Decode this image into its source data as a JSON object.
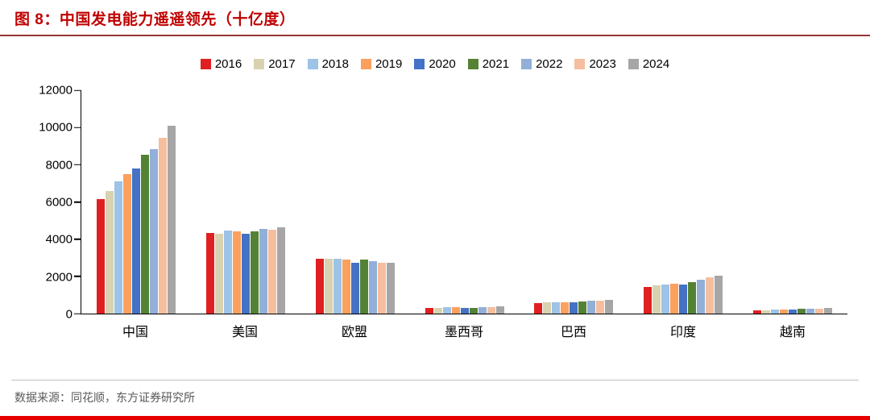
{
  "header": {
    "figure_label": "图 8：",
    "title": "中国发电能力遥遥领先（十亿度）"
  },
  "footer": {
    "source": "数据来源：同花顺，东方证券研究所"
  },
  "colors": {
    "title_red": "#C00000",
    "header_rule": "#953735",
    "bottom_rule": "#E60000",
    "footer_text": "#595959",
    "axis": "#000000"
  },
  "chart_data": {
    "type": "bar",
    "title": "中国发电能力遥遥领先（十亿度）",
    "xlabel": "",
    "ylabel": "",
    "ylim": [
      0,
      12000
    ],
    "yticks": [
      0,
      2000,
      4000,
      6000,
      8000,
      10000,
      12000
    ],
    "grid": false,
    "legend_position": "top",
    "categories": [
      "中国",
      "美国",
      "欧盟",
      "墨西哥",
      "巴西",
      "印度",
      "越南"
    ],
    "series": [
      {
        "name": "2016",
        "color": "#E02020",
        "values": [
          6133,
          4350,
          2950,
          320,
          580,
          1450,
          175
        ]
      },
      {
        "name": "2017",
        "color": "#D9D2B0",
        "values": [
          6604,
          4300,
          2950,
          325,
          590,
          1530,
          190
        ]
      },
      {
        "name": "2018",
        "color": "#9DC3E6",
        "values": [
          7112,
          4450,
          2950,
          330,
          600,
          1580,
          210
        ]
      },
      {
        "name": "2019",
        "color": "#FCA05E",
        "values": [
          7504,
          4400,
          2900,
          330,
          625,
          1620,
          230
        ]
      },
      {
        "name": "2020",
        "color": "#4472C4",
        "values": [
          7779,
          4300,
          2750,
          315,
          620,
          1560,
          235
        ]
      },
      {
        "name": "2021",
        "color": "#548235",
        "values": [
          8534,
          4400,
          2900,
          325,
          655,
          1700,
          245
        ]
      },
      {
        "name": "2022",
        "color": "#92AFD7",
        "values": [
          8849,
          4550,
          2800,
          335,
          680,
          1810,
          255
        ]
      },
      {
        "name": "2023",
        "color": "#F5BE9E",
        "values": [
          9456,
          4500,
          2750,
          340,
          710,
          1950,
          270
        ]
      },
      {
        "name": "2024",
        "color": "#A6A6A6",
        "values": [
          10087,
          4650,
          2750,
          410,
          750,
          2030,
          300
        ]
      }
    ]
  }
}
